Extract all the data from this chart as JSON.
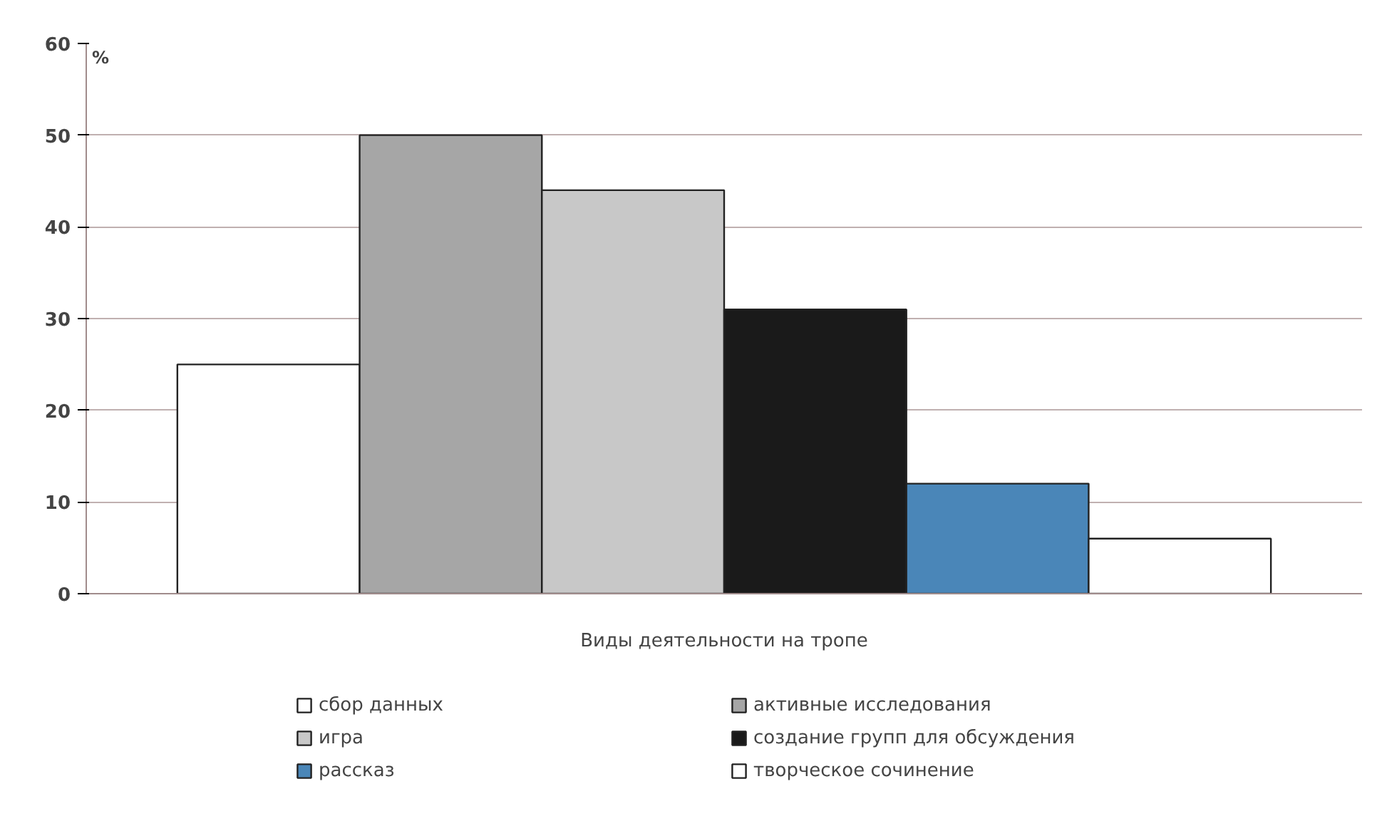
{
  "chart_data": {
    "type": "bar",
    "ylabel": "%",
    "categories": [
      "Виды деятельности на тропе"
    ],
    "series": [
      {
        "name": "сбор данных",
        "color": "#ffffff",
        "values": [
          25
        ]
      },
      {
        "name": "активные исследования",
        "color": "#a6a6a6",
        "values": [
          50
        ]
      },
      {
        "name": "игра",
        "color": "#c8c8c8",
        "values": [
          44
        ]
      },
      {
        "name": "создание групп для обсуждения",
        "color": "#1a1a1a",
        "values": [
          31
        ]
      },
      {
        "name": "рассказ",
        "color": "#4a86b8",
        "values": [
          12
        ]
      },
      {
        "name": "творческое сочинение",
        "color": "#ffffff",
        "values": [
          6
        ]
      }
    ],
    "ylim": [
      0,
      60
    ],
    "yticks": [
      0,
      10,
      20,
      30,
      40,
      50,
      60
    ],
    "grid": "y",
    "legend": "bottom"
  }
}
